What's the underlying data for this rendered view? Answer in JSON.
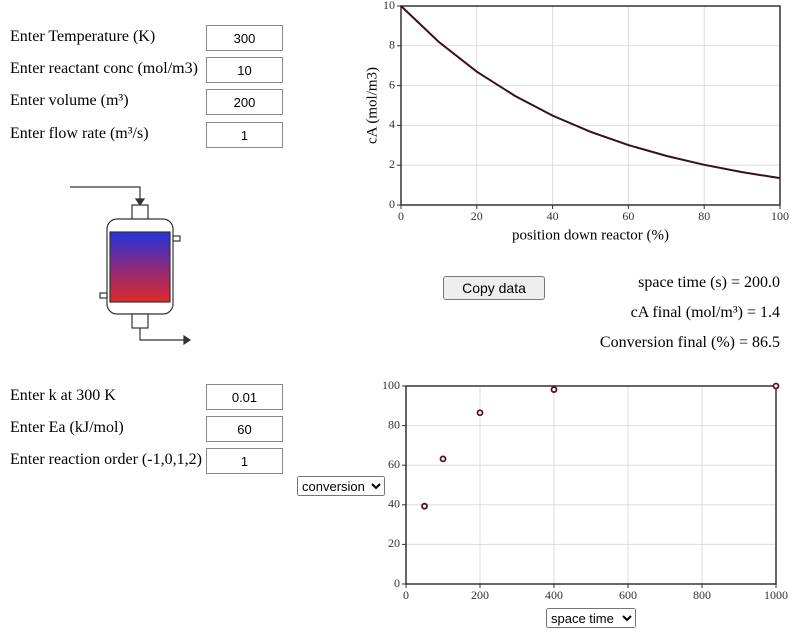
{
  "form_top": [
    {
      "label": "Enter Temperature (K)",
      "value": 300
    },
    {
      "label": "Enter reactant conc (mol/m3)",
      "value": 10
    },
    {
      "label": "Enter volume (m³)",
      "value": 200
    },
    {
      "label": "Enter flow rate (m³/s)",
      "value": 1
    }
  ],
  "form_bottom": [
    {
      "label": "Enter k at 300 K",
      "value": 0.01
    },
    {
      "label": "Enter Ea (kJ/mol)",
      "value": 60
    },
    {
      "label": "Enter reaction order (-1,0,1,2)",
      "value": 1
    }
  ],
  "results": [
    "space time (s) = 200.0",
    "cA final (mol/m³) = 1.4",
    "Conversion final (%) = 86.5"
  ],
  "controls": {
    "copy_button": "Copy data",
    "y_select": "conversion",
    "x_select": "space time"
  },
  "chart_data": [
    {
      "type": "line",
      "x_label": "position down reactor (%)",
      "y_label": "cA (mol/m3)",
      "x": [
        0,
        10,
        20,
        30,
        40,
        50,
        60,
        70,
        80,
        90,
        100
      ],
      "values": [
        10,
        8.19,
        6.7,
        5.49,
        4.49,
        3.68,
        3.01,
        2.47,
        2.02,
        1.65,
        1.35
      ],
      "color": "#3a0f1a",
      "xlim": [
        0,
        100
      ],
      "xticks": [
        0,
        20,
        40,
        60,
        80,
        100
      ],
      "ylim": [
        0,
        10
      ],
      "yticks": [
        0,
        2,
        4,
        6,
        8,
        10
      ],
      "grid": true
    },
    {
      "type": "scatter",
      "x": [
        50,
        100,
        200,
        400,
        1000
      ],
      "values": [
        39.3,
        63.2,
        86.5,
        98.2,
        100
      ],
      "color": "#5a0f1f",
      "xlim": [
        0,
        1000
      ],
      "xticks": [
        0,
        200,
        400,
        600,
        800,
        1000
      ],
      "ylim": [
        0,
        100
      ],
      "yticks": [
        0,
        20,
        40,
        60,
        80,
        100
      ],
      "grid": true
    }
  ]
}
